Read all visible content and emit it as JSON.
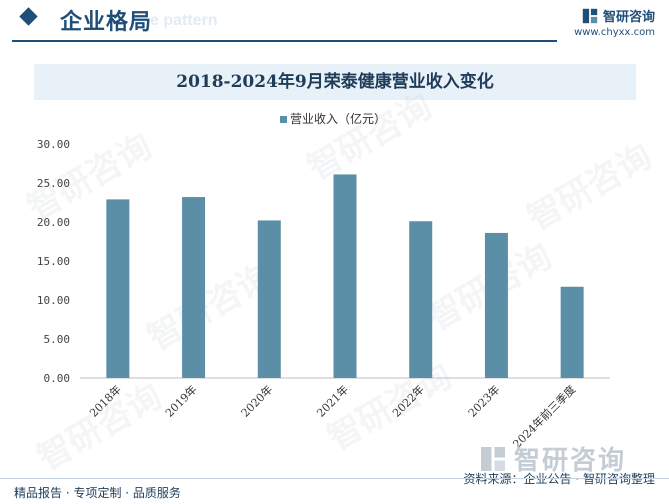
{
  "header": {
    "section_title": "企业格局",
    "ghost_text": "e pattern",
    "brand_name": "智研咨询",
    "brand_url": "www.chyxx.com",
    "accent_color": "#1f4e79"
  },
  "watermark": {
    "text": "智研咨询"
  },
  "footer": {
    "left": "精品报告 · 专项定制 · 品质服务",
    "source": "资料来源：企业公告 · 智研咨询整理",
    "watermark_brand": "智研咨询"
  },
  "chart_data": {
    "type": "bar",
    "title": "2018-2024年9月荣泰健康营业收入变化",
    "legend": {
      "label": "营业收入（亿元）",
      "position": "top-center"
    },
    "categories": [
      "2018年",
      "2019年",
      "2020年",
      "2021年",
      "2022年",
      "2023年",
      "2024年前三季度"
    ],
    "series": [
      {
        "name": "营业收入（亿元）",
        "values": [
          22.9,
          23.2,
          20.2,
          26.1,
          20.1,
          18.6,
          11.7
        ],
        "color": "#5b8fa8"
      }
    ],
    "yticks": [
      "0.00",
      "5.00",
      "10.00",
      "15.00",
      "20.00",
      "25.00",
      "30.00"
    ],
    "ylim": [
      0,
      30
    ],
    "grid": false
  }
}
